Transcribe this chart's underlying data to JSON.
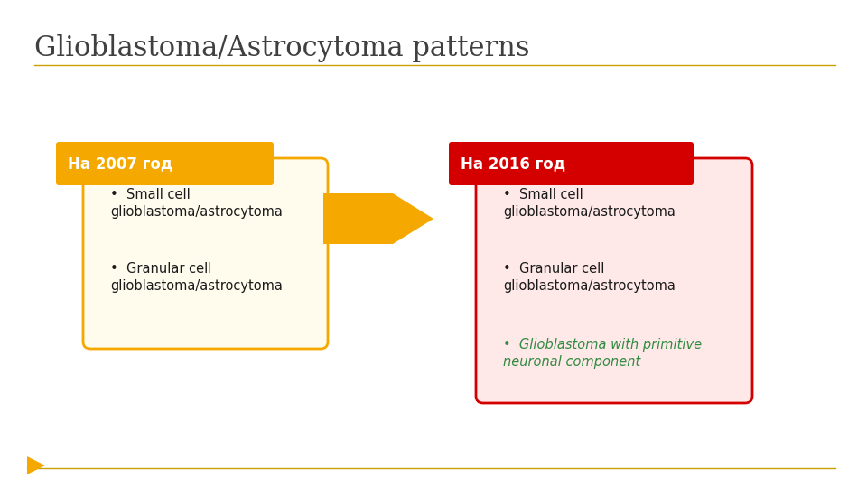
{
  "title": "Glioblastoma/Astrocytoma patterns",
  "title_color": "#404040",
  "title_fontsize": 22,
  "bg_color": "#ffffff",
  "divider_color": "#C8A000",
  "box2007_label": "На 2007 год",
  "box2007_header_color": "#F5A800",
  "box2007_body_color": "#FFFCEE",
  "box2007_border_color": "#F5A800",
  "box2007_items": [
    "Small cell\nglioblastoma/astrocytoma",
    "Granular cell\nglioblastoma/astrocytoma"
  ],
  "box2007_text_color": "#1a1a1a",
  "arrow_color": "#F5A800",
  "box2016_label": "На 2016 год",
  "box2016_header_color": "#D40000",
  "box2016_body_color": "#FFE8E8",
  "box2016_border_color": "#D40000",
  "box2016_items": [
    "Small cell\nglioblastoma/astrocytoma",
    "Granular cell\nglioblastoma/astrocytoma"
  ],
  "box2016_item3": "Glioblastoma with primitive\nneuronal component",
  "box2016_text_color": "#1a1a1a",
  "box2016_item3_color": "#2E8B40",
  "footer_line_color": "#C8A000",
  "footer_triangle_color": "#F5A800",
  "label_text_color": "#ffffff",
  "label_fontsize": 12
}
